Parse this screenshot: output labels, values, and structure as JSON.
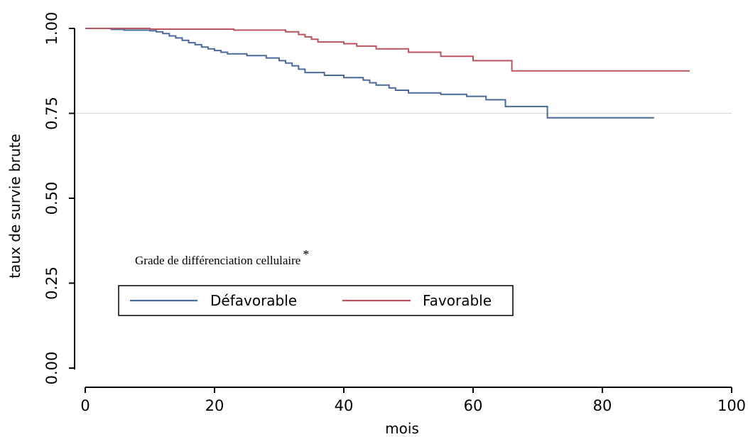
{
  "chart_data": {
    "type": "line",
    "step": true,
    "title": "",
    "xlabel": "mois",
    "ylabel": "taux de survie brute",
    "xlim": [
      0,
      100
    ],
    "ylim": [
      0,
      1
    ],
    "x_ticks": [
      "0",
      "20",
      "40",
      "60",
      "80",
      "100"
    ],
    "y_ticks": [
      "0.00",
      "0.25",
      "0.50",
      "0.75",
      "1.00"
    ],
    "reference_line": {
      "y": 0.75,
      "color": "#d9d9d9"
    },
    "annotation": "Grade de différenciation cellulaire",
    "annotation_mark": "*",
    "legend": {
      "placement": "lower-left",
      "entries": [
        "Défavorable",
        "Favorable"
      ]
    },
    "series": [
      {
        "name": "Défavorable",
        "color": "#4a6a9a",
        "x": [
          0,
          4,
          6,
          10,
          11,
          12,
          13,
          14,
          15,
          16,
          17,
          18,
          19,
          20,
          21,
          22,
          25,
          28,
          30,
          31,
          32,
          33,
          34,
          37,
          40,
          43,
          44,
          45,
          47,
          48,
          50,
          55,
          59,
          62,
          65,
          71.5,
          88
        ],
        "y": [
          1.0,
          0.997,
          0.995,
          0.993,
          0.99,
          0.985,
          0.978,
          0.972,
          0.965,
          0.958,
          0.952,
          0.945,
          0.94,
          0.935,
          0.93,
          0.925,
          0.92,
          0.913,
          0.905,
          0.898,
          0.89,
          0.88,
          0.87,
          0.862,
          0.855,
          0.848,
          0.84,
          0.833,
          0.825,
          0.818,
          0.81,
          0.806,
          0.8,
          0.79,
          0.77,
          0.737,
          0.737
        ]
      },
      {
        "name": "Favorable",
        "color": "#b9555e",
        "x": [
          0,
          10,
          23,
          31,
          33,
          34,
          35,
          36,
          40,
          42,
          45,
          50,
          55,
          60,
          66,
          93.5
        ],
        "y": [
          1.0,
          0.998,
          0.995,
          0.99,
          0.982,
          0.975,
          0.968,
          0.96,
          0.955,
          0.948,
          0.94,
          0.93,
          0.918,
          0.905,
          0.875,
          0.875
        ]
      }
    ]
  }
}
